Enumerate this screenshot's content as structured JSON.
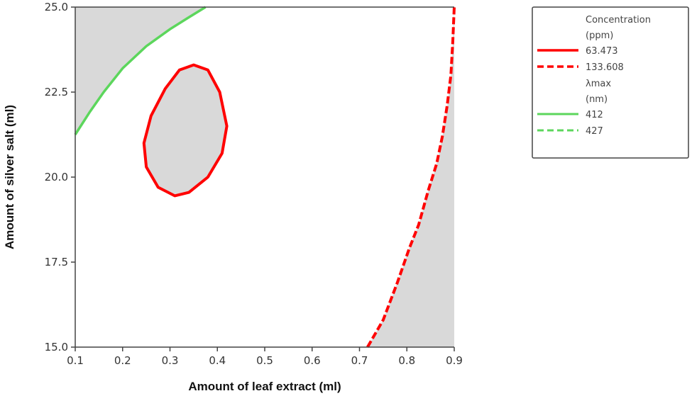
{
  "chart_data": {
    "type": "contour-overlay",
    "xlabel": "Amount of leaf extract (ml)",
    "ylabel": "Amount of silver salt (ml)",
    "xlim": [
      0.1,
      0.9
    ],
    "ylim": [
      15.0,
      25.0
    ],
    "xticks": [
      "0.1",
      "0.2",
      "0.3",
      "0.4",
      "0.5",
      "0.6",
      "0.7",
      "0.8",
      "0.9"
    ],
    "yticks": [
      "15.0",
      "17.5",
      "20.0",
      "22.5",
      "25.0"
    ],
    "colors": {
      "concentration": "#ff0000",
      "lambda": "#5cd65c",
      "shade": "#d9d9d9"
    },
    "legend": {
      "position": "right",
      "groups": [
        {
          "title1": "Concentration",
          "title2": "(ppm)",
          "entries": [
            {
              "label": "63.473",
              "style": "solid"
            },
            {
              "label": "133.608",
              "style": "dashed"
            }
          ]
        },
        {
          "title1": "λmax",
          "title2": "(nm)",
          "entries": [
            {
              "label": "412",
              "style": "solid"
            },
            {
              "label": "427",
              "style": "dashed"
            }
          ]
        }
      ]
    },
    "contours": {
      "lambda_412": [
        [
          0.1,
          21.25
        ],
        [
          0.13,
          21.9
        ],
        [
          0.16,
          22.5
        ],
        [
          0.2,
          23.2
        ],
        [
          0.25,
          23.85
        ],
        [
          0.3,
          24.35
        ],
        [
          0.34,
          24.7
        ],
        [
          0.375,
          25.0
        ]
      ],
      "conc_63_473": [
        [
          0.35,
          23.3
        ],
        [
          0.38,
          23.15
        ],
        [
          0.405,
          22.5
        ],
        [
          0.42,
          21.5
        ],
        [
          0.41,
          20.7
        ],
        [
          0.38,
          20.0
        ],
        [
          0.34,
          19.55
        ],
        [
          0.31,
          19.45
        ],
        [
          0.275,
          19.7
        ],
        [
          0.25,
          20.3
        ],
        [
          0.245,
          21.0
        ],
        [
          0.26,
          21.8
        ],
        [
          0.29,
          22.6
        ],
        [
          0.32,
          23.15
        ]
      ],
      "conc_133_608": [
        [
          0.717,
          15.0
        ],
        [
          0.75,
          15.8
        ],
        [
          0.78,
          16.9
        ],
        [
          0.805,
          17.9
        ],
        [
          0.825,
          18.6
        ],
        [
          0.845,
          19.6
        ],
        [
          0.863,
          20.4
        ],
        [
          0.875,
          21.2
        ],
        [
          0.885,
          22.1
        ],
        [
          0.893,
          23.0
        ],
        [
          0.897,
          24.0
        ],
        [
          0.9,
          25.0
        ]
      ]
    }
  }
}
